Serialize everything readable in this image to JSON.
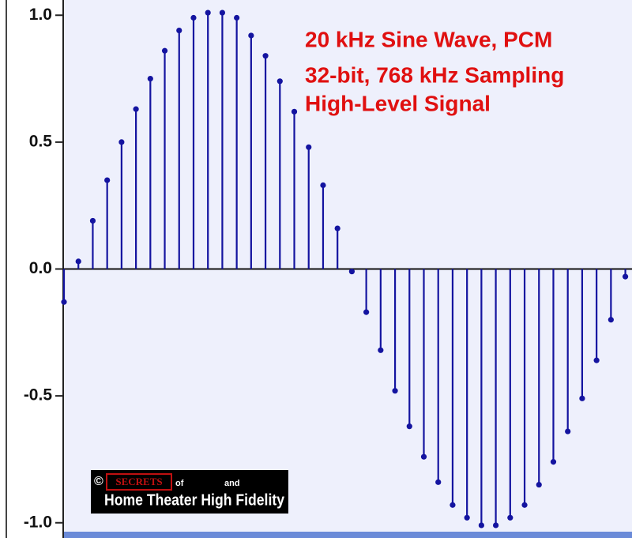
{
  "chart_data": {
    "type": "stem",
    "annotations": [
      "20 kHz Sine Wave, PCM",
      "32-bit, 768 kHz Sampling",
      "High-Level Signal"
    ],
    "values": [
      -0.13,
      0.03,
      0.19,
      0.35,
      0.5,
      0.63,
      0.75,
      0.86,
      0.94,
      0.99,
      1.01,
      1.01,
      0.99,
      0.92,
      0.84,
      0.74,
      0.62,
      0.48,
      0.33,
      0.16,
      -0.01,
      -0.17,
      -0.32,
      -0.48,
      -0.62,
      -0.74,
      -0.84,
      -0.93,
      -0.98,
      -1.01,
      -1.01,
      -0.98,
      -0.93,
      -0.85,
      -0.76,
      -0.64,
      -0.51,
      -0.36,
      -0.2,
      -0.03
    ],
    "color": "#1414a0",
    "ylim": [
      -1.06,
      1.06
    ],
    "yticks": [
      {
        "value": 1,
        "label": "1.0"
      },
      0.5,
      {
        "value": 0,
        "label": "0.0"
      },
      -0.5,
      {
        "value": -1,
        "label": "-1.0"
      }
    ],
    "watermark": {
      "copyright": "©",
      "brand": "SECRETS",
      "of": "of",
      "and": "and",
      "name": "Home Theater High Fidelity"
    }
  }
}
